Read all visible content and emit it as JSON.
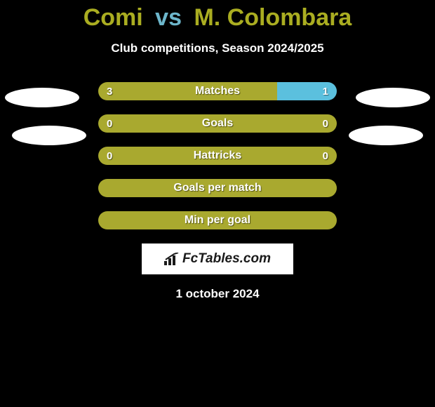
{
  "title": {
    "player1": "Comi",
    "vs": "vs",
    "player2": "M. Colombara",
    "player1_color": "#aaad21",
    "vs_color": "#6db6cb",
    "player2_color": "#aaad21"
  },
  "subtitle": "Club competitions, Season 2024/2025",
  "colors": {
    "bar_olive": "#a9a92f",
    "bar_cyan": "#5bc0de",
    "bar_neutral": "#a9a92f",
    "background": "#000000",
    "avatar": "#ffffff",
    "logo_bg": "#ffffff",
    "logo_text": "#1a1a1a"
  },
  "rows": [
    {
      "label": "Matches",
      "left_value": "3",
      "right_value": "1",
      "left_pct": 75,
      "right_pct": 25,
      "left_color": "#a9a92f",
      "right_color": "#5bc0de"
    },
    {
      "label": "Goals",
      "left_value": "0",
      "right_value": "0",
      "left_pct": 50,
      "right_pct": 50,
      "left_color": "#a9a92f",
      "right_color": "#a9a92f"
    },
    {
      "label": "Hattricks",
      "left_value": "0",
      "right_value": "0",
      "left_pct": 50,
      "right_pct": 50,
      "left_color": "#a9a92f",
      "right_color": "#a9a92f"
    },
    {
      "label": "Goals per match",
      "left_value": "",
      "right_value": "",
      "left_pct": 50,
      "right_pct": 50,
      "left_color": "#a9a92f",
      "right_color": "#a9a92f"
    },
    {
      "label": "Min per goal",
      "left_value": "",
      "right_value": "",
      "left_pct": 50,
      "right_pct": 50,
      "left_color": "#a9a92f",
      "right_color": "#a9a92f"
    }
  ],
  "logo": "FcTables.com",
  "date": "1 october 2024"
}
